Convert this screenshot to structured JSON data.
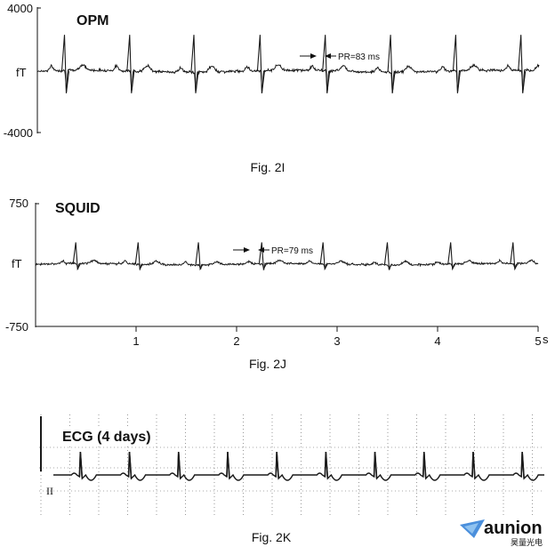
{
  "brand": {
    "name": "aunion",
    "subtitle": "昊量光电",
    "color": "#2a7bd6"
  },
  "trace_color": "#1a1a1a",
  "chart_data": [
    {
      "type": "line",
      "caption": "Fig. 2I",
      "title": "OPM",
      "ylabel": "fT",
      "ylim": [
        -4000,
        4000
      ],
      "ytick_labels": [
        "4000",
        "-4000"
      ],
      "xlim": [
        0,
        5
      ],
      "r_peak_times": [
        0.27,
        0.92,
        1.56,
        2.22,
        2.87,
        3.52,
        4.17,
        4.82
      ],
      "r_peak_amplitude": 2300,
      "s_trough_amplitude": -1400,
      "noise_amplitude": 120,
      "annotation": {
        "text": "PR=83 ms",
        "time": 2.86,
        "duration_ms": 83
      }
    },
    {
      "type": "line",
      "caption": "Fig. 2J",
      "title": "SQUID",
      "ylabel": "fT",
      "ylim": [
        -750,
        750
      ],
      "ytick_labels": [
        "750",
        "-750"
      ],
      "xlim": [
        0,
        5
      ],
      "xticks": [
        1,
        2,
        3,
        4,
        5
      ],
      "xtick_labels": [
        "1",
        "2",
        "3",
        "4",
        "5"
      ],
      "xunit": "s",
      "r_peak_times": [
        0.4,
        1.02,
        1.62,
        2.25,
        2.86,
        3.5,
        4.13,
        4.75
      ],
      "r_peak_amplitude": 270,
      "s_trough_amplitude": -60,
      "noise_amplitude": 18,
      "annotation": {
        "text": "PR=79 ms",
        "time": 2.24,
        "duration_ms": 79
      }
    },
    {
      "type": "line",
      "caption": "Fig. 2K",
      "title": "ECG (4 days)",
      "lead_label": "II",
      "beat_count": 10,
      "xlim": [
        0,
        5
      ]
    }
  ]
}
